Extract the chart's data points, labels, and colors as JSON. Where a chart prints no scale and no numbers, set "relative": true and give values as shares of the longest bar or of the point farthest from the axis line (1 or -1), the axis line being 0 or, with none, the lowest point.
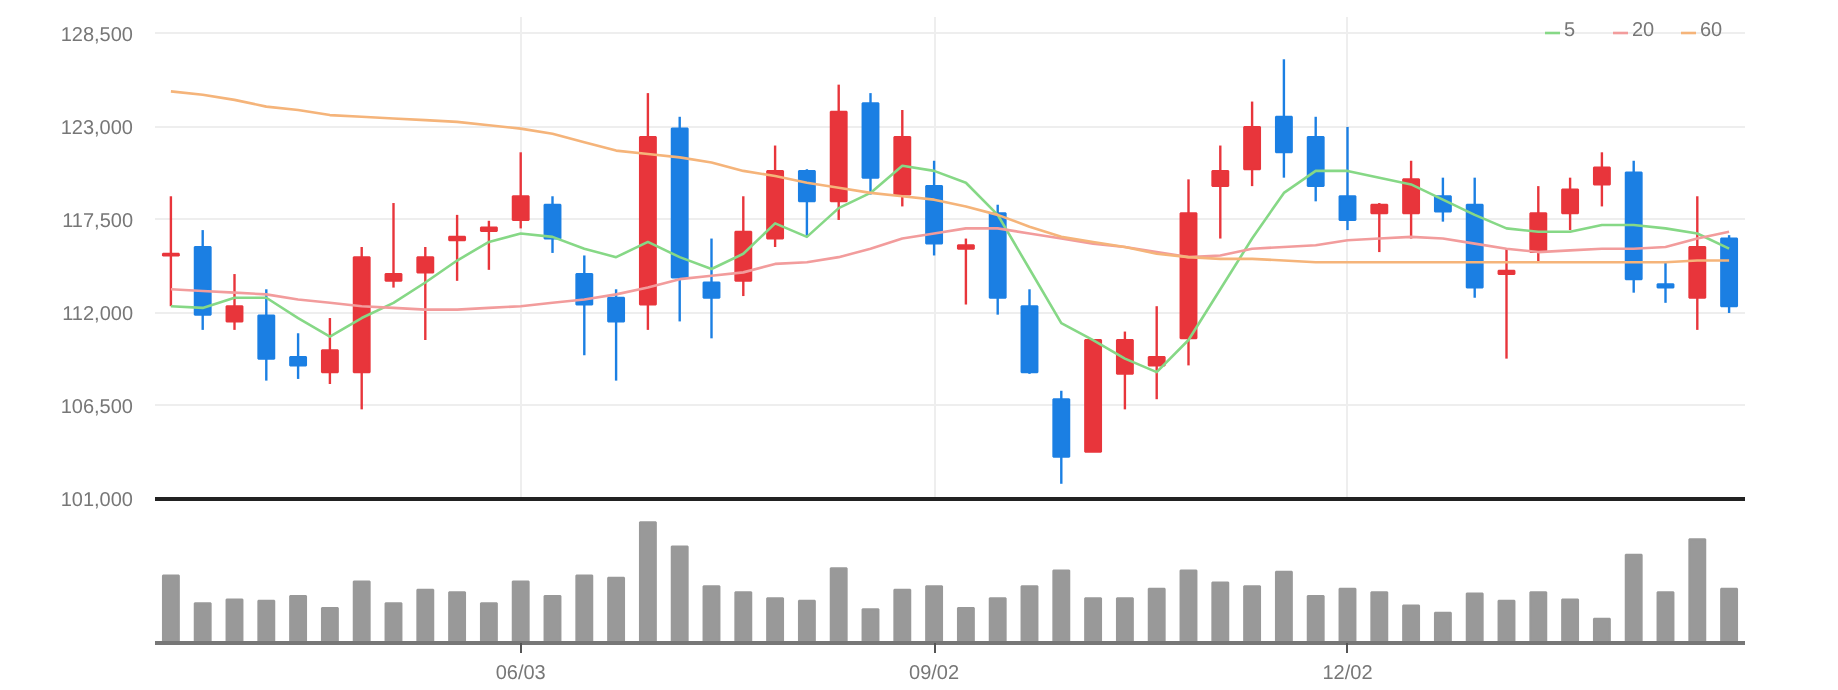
{
  "chart_data": [
    {
      "type": "candlestick",
      "categories": [
        null,
        null,
        null,
        null,
        null,
        null,
        null,
        null,
        null,
        null,
        null,
        null,
        null,
        null,
        null,
        null,
        null,
        null,
        null,
        null,
        null,
        null,
        null,
        null,
        null,
        null,
        null,
        null,
        null,
        null,
        null,
        null,
        null,
        null,
        null,
        null,
        null,
        null,
        null,
        null,
        null,
        null,
        null,
        null,
        null,
        null,
        null,
        null,
        null,
        null
      ],
      "ohlc": [
        [
          115400,
          118900,
          112400,
          115500
        ],
        [
          115900,
          116900,
          111000,
          111900
        ],
        [
          111500,
          114300,
          111000,
          112400
        ],
        [
          111850,
          113400,
          108000,
          109300
        ],
        [
          109400,
          110800,
          108100,
          108900
        ],
        [
          108500,
          111700,
          107800,
          109800
        ],
        [
          108500,
          115900,
          106300,
          115300
        ],
        [
          113900,
          118500,
          113500,
          114300
        ],
        [
          114400,
          115900,
          110400,
          115300
        ],
        [
          116300,
          117800,
          113900,
          116500
        ],
        [
          116850,
          117450,
          114550,
          117050
        ],
        [
          117500,
          121500,
          117000,
          118900
        ],
        [
          118400,
          118900,
          115550,
          116400
        ],
        [
          114300,
          115400,
          109500,
          112500
        ],
        [
          112900,
          113400,
          108000,
          111500
        ],
        [
          112500,
          125000,
          111000,
          122400
        ],
        [
          122900,
          123600,
          111500,
          114100
        ],
        [
          113800,
          116400,
          110500,
          112900
        ],
        [
          113900,
          118900,
          113000,
          116800
        ],
        [
          116400,
          121900,
          115900,
          120400
        ],
        [
          120400,
          120500,
          116500,
          118600
        ],
        [
          118600,
          125500,
          117500,
          123900
        ],
        [
          124400,
          125000,
          119000,
          120000
        ],
        [
          119000,
          124000,
          118300,
          122400
        ],
        [
          119500,
          121000,
          115400,
          116100
        ],
        [
          115800,
          116400,
          112500,
          116000
        ],
        [
          117900,
          118400,
          111900,
          112900
        ],
        [
          112400,
          113400,
          108400,
          108500
        ],
        [
          106900,
          107400,
          101900,
          103500
        ],
        [
          103800,
          110400,
          103800,
          110400
        ],
        [
          108400,
          110900,
          106300,
          110400
        ],
        [
          108900,
          112400,
          106900,
          109400
        ],
        [
          110500,
          119900,
          108900,
          117900
        ],
        [
          119500,
          121900,
          116400,
          120400
        ],
        [
          120500,
          124500,
          119500,
          123000
        ],
        [
          123600,
          127000,
          120000,
          121500
        ],
        [
          122400,
          123600,
          118600,
          119500
        ],
        [
          118900,
          123000,
          116900,
          117500
        ],
        [
          117900,
          118500,
          115600,
          118400
        ],
        [
          117900,
          121000,
          116400,
          119900
        ],
        [
          118900,
          120000,
          117400,
          118000
        ],
        [
          118400,
          120000,
          112900,
          113500
        ],
        [
          114300,
          115800,
          109300,
          114500
        ],
        [
          115600,
          119500,
          115000,
          117900
        ],
        [
          117900,
          120000,
          116900,
          119300
        ],
        [
          119600,
          121500,
          118300,
          120600
        ],
        [
          120300,
          121000,
          113200,
          114000
        ],
        [
          113700,
          115000,
          112600,
          113500
        ],
        [
          112900,
          118900,
          111000,
          115900
        ],
        [
          116400,
          116600,
          112000,
          112400
        ]
      ],
      "colors": [
        "#e8353b",
        "#1b7fe3",
        "#e8353b",
        "#1b7fe3",
        "#1b7fe3",
        "#e8353b",
        "#e8353b",
        "#e8353b",
        "#e8353b",
        "#e8353b",
        "#e8353b",
        "#e8353b",
        "#1b7fe3",
        "#1b7fe3",
        "#1b7fe3",
        "#e8353b",
        "#1b7fe3",
        "#1b7fe3",
        "#e8353b",
        "#e8353b",
        "#1b7fe3",
        "#e8353b",
        "#1b7fe3",
        "#e8353b",
        "#1b7fe3",
        "#e8353b",
        "#1b7fe3",
        "#1b7fe3",
        "#1b7fe3",
        "#e8353b",
        "#e8353b",
        "#e8353b",
        "#e8353b",
        "#e8353b",
        "#e8353b",
        "#1b7fe3",
        "#1b7fe3",
        "#1b7fe3",
        "#e8353b",
        "#e8353b",
        "#1b7fe3",
        "#1b7fe3",
        "#e8353b",
        "#e8353b",
        "#e8353b",
        "#e8353b",
        "#1b7fe3",
        "#1b7fe3",
        "#e8353b",
        "#1b7fe3"
      ],
      "series": [
        {
          "name": "5",
          "type": "line",
          "color": "#86d886",
          "values": [
            112400,
            112300,
            112900,
            112900,
            111700,
            110600,
            111700,
            112600,
            113800,
            115100,
            116200,
            116700,
            116500,
            115800,
            115300,
            116200,
            115300,
            114600,
            115500,
            117300,
            116500,
            118200,
            119100,
            120700,
            120400,
            119700,
            117800,
            114600,
            111400,
            110400,
            109300,
            108500,
            110400,
            113400,
            116400,
            119100,
            120400,
            120400,
            120000,
            119600,
            118700,
            117800,
            117000,
            116800,
            116800,
            117200,
            117200,
            117000,
            116700,
            115800
          ]
        },
        {
          "name": "20",
          "type": "line",
          "color": "#f29c9c",
          "values": [
            113400,
            113300,
            113200,
            113100,
            112800,
            112600,
            112400,
            112300,
            112200,
            112200,
            112300,
            112400,
            112600,
            112800,
            113100,
            113500,
            114000,
            114200,
            114400,
            114900,
            115000,
            115300,
            115800,
            116400,
            116700,
            117000,
            117000,
            116700,
            116400,
            116100,
            115900,
            115600,
            115300,
            115400,
            115800,
            115900,
            116000,
            116300,
            116400,
            116500,
            116400,
            116100,
            115800,
            115600,
            115700,
            115800,
            115800,
            115900,
            116400,
            116800
          ]
        },
        {
          "name": "60",
          "type": "line",
          "color": "#f5b47a",
          "values": [
            125100,
            124900,
            124600,
            124200,
            124000,
            123700,
            123600,
            123500,
            123400,
            123300,
            123100,
            122900,
            122600,
            122100,
            121600,
            121400,
            121200,
            120900,
            120400,
            120100,
            119700,
            119400,
            119100,
            118900,
            118700,
            118300,
            117800,
            117100,
            116500,
            116200,
            115900,
            115500,
            115300,
            115200,
            115200,
            115100,
            115000,
            115000,
            115000,
            115000,
            115000,
            115000,
            115000,
            115000,
            115000,
            115000,
            115000,
            115000,
            115100,
            115100
          ]
        }
      ],
      "ylim": [
        101000,
        129500
      ],
      "yticks": [
        {
          "value": 101000,
          "label": "101,000"
        },
        {
          "value": 106500,
          "label": "106,500"
        },
        {
          "value": 112000,
          "label": "112,000"
        },
        {
          "value": 117500,
          "label": "117,500"
        },
        {
          "value": 123000,
          "label": "123,000"
        },
        {
          "value": 128500,
          "label": "128,500"
        }
      ],
      "grid": true,
      "legend": "top right",
      "tick_labels": "y"
    },
    {
      "type": "bar",
      "relative": true,
      "color": "#999999",
      "tick_labels": "x",
      "categories": [
        null,
        null,
        null,
        null,
        null,
        null,
        null,
        null,
        null,
        null,
        null,
        "06/03",
        null,
        null,
        null,
        null,
        null,
        null,
        null,
        null,
        null,
        null,
        null,
        null,
        "09/02",
        null,
        null,
        null,
        null,
        null,
        null,
        null,
        null,
        null,
        null,
        null,
        null,
        "12/02",
        null,
        null,
        null,
        null,
        null,
        null,
        null,
        null,
        null,
        null,
        null,
        null
      ],
      "values": [
        0.56,
        0.33,
        0.36,
        0.35,
        0.39,
        0.29,
        0.51,
        0.33,
        0.44,
        0.42,
        0.33,
        0.51,
        0.39,
        0.56,
        0.54,
        1,
        0.8,
        0.47,
        0.42,
        0.37,
        0.35,
        0.62,
        0.28,
        0.44,
        0.47,
        0.29,
        0.37,
        0.47,
        0.6,
        0.37,
        0.37,
        0.45,
        0.6,
        0.5,
        0.47,
        0.59,
        0.39,
        0.45,
        0.42,
        0.31,
        0.25,
        0.41,
        0.35,
        0.42,
        0.36,
        0.2,
        0.73,
        0.42,
        0.86,
        0.45
      ]
    }
  ]
}
